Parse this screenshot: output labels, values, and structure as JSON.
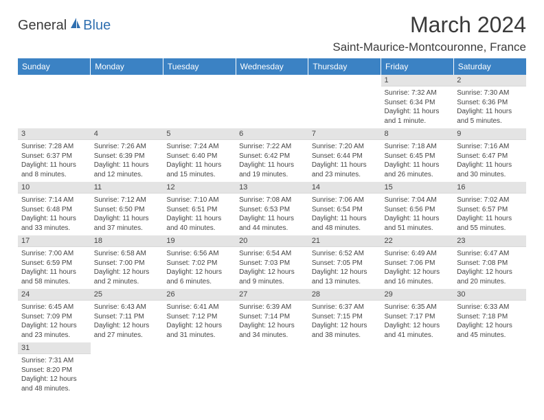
{
  "logo": {
    "part1": "General",
    "part2": "Blue"
  },
  "title": "March 2024",
  "location": "Saint-Maurice-Montcouronne, France",
  "colors": {
    "header_bg": "#3b82c4",
    "header_text": "#ffffff",
    "daynum_bg": "#e4e4e4",
    "text": "#444444"
  },
  "daysOfWeek": [
    "Sunday",
    "Monday",
    "Tuesday",
    "Wednesday",
    "Thursday",
    "Friday",
    "Saturday"
  ],
  "weeks": [
    [
      {
        "day": "",
        "sunrise": "",
        "sunset": "",
        "daylight1": "",
        "daylight2": ""
      },
      {
        "day": "",
        "sunrise": "",
        "sunset": "",
        "daylight1": "",
        "daylight2": ""
      },
      {
        "day": "",
        "sunrise": "",
        "sunset": "",
        "daylight1": "",
        "daylight2": ""
      },
      {
        "day": "",
        "sunrise": "",
        "sunset": "",
        "daylight1": "",
        "daylight2": ""
      },
      {
        "day": "",
        "sunrise": "",
        "sunset": "",
        "daylight1": "",
        "daylight2": ""
      },
      {
        "day": "1",
        "sunrise": "Sunrise: 7:32 AM",
        "sunset": "Sunset: 6:34 PM",
        "daylight1": "Daylight: 11 hours",
        "daylight2": "and 1 minute."
      },
      {
        "day": "2",
        "sunrise": "Sunrise: 7:30 AM",
        "sunset": "Sunset: 6:36 PM",
        "daylight1": "Daylight: 11 hours",
        "daylight2": "and 5 minutes."
      }
    ],
    [
      {
        "day": "3",
        "sunrise": "Sunrise: 7:28 AM",
        "sunset": "Sunset: 6:37 PM",
        "daylight1": "Daylight: 11 hours",
        "daylight2": "and 8 minutes."
      },
      {
        "day": "4",
        "sunrise": "Sunrise: 7:26 AM",
        "sunset": "Sunset: 6:39 PM",
        "daylight1": "Daylight: 11 hours",
        "daylight2": "and 12 minutes."
      },
      {
        "day": "5",
        "sunrise": "Sunrise: 7:24 AM",
        "sunset": "Sunset: 6:40 PM",
        "daylight1": "Daylight: 11 hours",
        "daylight2": "and 15 minutes."
      },
      {
        "day": "6",
        "sunrise": "Sunrise: 7:22 AM",
        "sunset": "Sunset: 6:42 PM",
        "daylight1": "Daylight: 11 hours",
        "daylight2": "and 19 minutes."
      },
      {
        "day": "7",
        "sunrise": "Sunrise: 7:20 AM",
        "sunset": "Sunset: 6:44 PM",
        "daylight1": "Daylight: 11 hours",
        "daylight2": "and 23 minutes."
      },
      {
        "day": "8",
        "sunrise": "Sunrise: 7:18 AM",
        "sunset": "Sunset: 6:45 PM",
        "daylight1": "Daylight: 11 hours",
        "daylight2": "and 26 minutes."
      },
      {
        "day": "9",
        "sunrise": "Sunrise: 7:16 AM",
        "sunset": "Sunset: 6:47 PM",
        "daylight1": "Daylight: 11 hours",
        "daylight2": "and 30 minutes."
      }
    ],
    [
      {
        "day": "10",
        "sunrise": "Sunrise: 7:14 AM",
        "sunset": "Sunset: 6:48 PM",
        "daylight1": "Daylight: 11 hours",
        "daylight2": "and 33 minutes."
      },
      {
        "day": "11",
        "sunrise": "Sunrise: 7:12 AM",
        "sunset": "Sunset: 6:50 PM",
        "daylight1": "Daylight: 11 hours",
        "daylight2": "and 37 minutes."
      },
      {
        "day": "12",
        "sunrise": "Sunrise: 7:10 AM",
        "sunset": "Sunset: 6:51 PM",
        "daylight1": "Daylight: 11 hours",
        "daylight2": "and 40 minutes."
      },
      {
        "day": "13",
        "sunrise": "Sunrise: 7:08 AM",
        "sunset": "Sunset: 6:53 PM",
        "daylight1": "Daylight: 11 hours",
        "daylight2": "and 44 minutes."
      },
      {
        "day": "14",
        "sunrise": "Sunrise: 7:06 AM",
        "sunset": "Sunset: 6:54 PM",
        "daylight1": "Daylight: 11 hours",
        "daylight2": "and 48 minutes."
      },
      {
        "day": "15",
        "sunrise": "Sunrise: 7:04 AM",
        "sunset": "Sunset: 6:56 PM",
        "daylight1": "Daylight: 11 hours",
        "daylight2": "and 51 minutes."
      },
      {
        "day": "16",
        "sunrise": "Sunrise: 7:02 AM",
        "sunset": "Sunset: 6:57 PM",
        "daylight1": "Daylight: 11 hours",
        "daylight2": "and 55 minutes."
      }
    ],
    [
      {
        "day": "17",
        "sunrise": "Sunrise: 7:00 AM",
        "sunset": "Sunset: 6:59 PM",
        "daylight1": "Daylight: 11 hours",
        "daylight2": "and 58 minutes."
      },
      {
        "day": "18",
        "sunrise": "Sunrise: 6:58 AM",
        "sunset": "Sunset: 7:00 PM",
        "daylight1": "Daylight: 12 hours",
        "daylight2": "and 2 minutes."
      },
      {
        "day": "19",
        "sunrise": "Sunrise: 6:56 AM",
        "sunset": "Sunset: 7:02 PM",
        "daylight1": "Daylight: 12 hours",
        "daylight2": "and 6 minutes."
      },
      {
        "day": "20",
        "sunrise": "Sunrise: 6:54 AM",
        "sunset": "Sunset: 7:03 PM",
        "daylight1": "Daylight: 12 hours",
        "daylight2": "and 9 minutes."
      },
      {
        "day": "21",
        "sunrise": "Sunrise: 6:52 AM",
        "sunset": "Sunset: 7:05 PM",
        "daylight1": "Daylight: 12 hours",
        "daylight2": "and 13 minutes."
      },
      {
        "day": "22",
        "sunrise": "Sunrise: 6:49 AM",
        "sunset": "Sunset: 7:06 PM",
        "daylight1": "Daylight: 12 hours",
        "daylight2": "and 16 minutes."
      },
      {
        "day": "23",
        "sunrise": "Sunrise: 6:47 AM",
        "sunset": "Sunset: 7:08 PM",
        "daylight1": "Daylight: 12 hours",
        "daylight2": "and 20 minutes."
      }
    ],
    [
      {
        "day": "24",
        "sunrise": "Sunrise: 6:45 AM",
        "sunset": "Sunset: 7:09 PM",
        "daylight1": "Daylight: 12 hours",
        "daylight2": "and 23 minutes."
      },
      {
        "day": "25",
        "sunrise": "Sunrise: 6:43 AM",
        "sunset": "Sunset: 7:11 PM",
        "daylight1": "Daylight: 12 hours",
        "daylight2": "and 27 minutes."
      },
      {
        "day": "26",
        "sunrise": "Sunrise: 6:41 AM",
        "sunset": "Sunset: 7:12 PM",
        "daylight1": "Daylight: 12 hours",
        "daylight2": "and 31 minutes."
      },
      {
        "day": "27",
        "sunrise": "Sunrise: 6:39 AM",
        "sunset": "Sunset: 7:14 PM",
        "daylight1": "Daylight: 12 hours",
        "daylight2": "and 34 minutes."
      },
      {
        "day": "28",
        "sunrise": "Sunrise: 6:37 AM",
        "sunset": "Sunset: 7:15 PM",
        "daylight1": "Daylight: 12 hours",
        "daylight2": "and 38 minutes."
      },
      {
        "day": "29",
        "sunrise": "Sunrise: 6:35 AM",
        "sunset": "Sunset: 7:17 PM",
        "daylight1": "Daylight: 12 hours",
        "daylight2": "and 41 minutes."
      },
      {
        "day": "30",
        "sunrise": "Sunrise: 6:33 AM",
        "sunset": "Sunset: 7:18 PM",
        "daylight1": "Daylight: 12 hours",
        "daylight2": "and 45 minutes."
      }
    ],
    [
      {
        "day": "31",
        "sunrise": "Sunrise: 7:31 AM",
        "sunset": "Sunset: 8:20 PM",
        "daylight1": "Daylight: 12 hours",
        "daylight2": "and 48 minutes."
      },
      {
        "day": "",
        "sunrise": "",
        "sunset": "",
        "daylight1": "",
        "daylight2": ""
      },
      {
        "day": "",
        "sunrise": "",
        "sunset": "",
        "daylight1": "",
        "daylight2": ""
      },
      {
        "day": "",
        "sunrise": "",
        "sunset": "",
        "daylight1": "",
        "daylight2": ""
      },
      {
        "day": "",
        "sunrise": "",
        "sunset": "",
        "daylight1": "",
        "daylight2": ""
      },
      {
        "day": "",
        "sunrise": "",
        "sunset": "",
        "daylight1": "",
        "daylight2": ""
      },
      {
        "day": "",
        "sunrise": "",
        "sunset": "",
        "daylight1": "",
        "daylight2": ""
      }
    ]
  ]
}
